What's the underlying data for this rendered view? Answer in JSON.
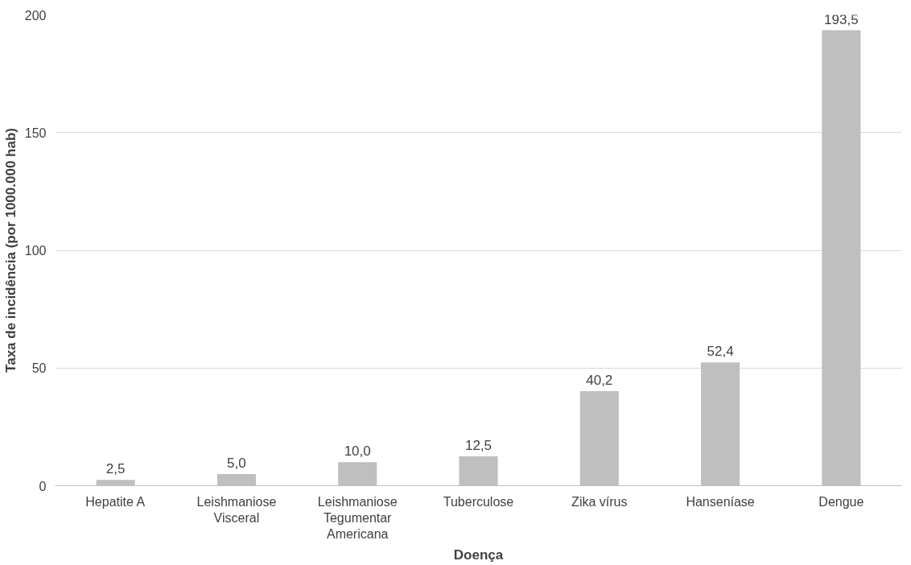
{
  "chart_data": {
    "type": "bar",
    "xlabel": "Doença",
    "ylabel": "Taxa de incidência (por 1000.000 hab)",
    "categories": [
      "Hepatite A",
      "Leishmaniose Visceral",
      "Leishmaniose Tegumentar Americana",
      "Tuberculose",
      "Zika vírus",
      "Hanseníase",
      "Dengue"
    ],
    "values": [
      2.5,
      5.0,
      10.0,
      12.5,
      40.2,
      52.4,
      193.5
    ],
    "value_labels": [
      "2,5",
      "5,0",
      "10,0",
      "12,5",
      "40,2",
      "52,4",
      "193,5"
    ],
    "color": "#bfbfbf",
    "ylim": [
      0,
      200
    ],
    "yticks": [
      0,
      50,
      100,
      150,
      200
    ],
    "grid": "y"
  }
}
